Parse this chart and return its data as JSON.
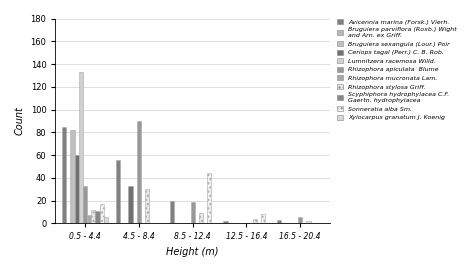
{
  "categories": [
    "0.5 - 4.4",
    "4.5 - 8.4",
    "8.5 - 12.4",
    "12.5 - 16.4",
    "16.5 - 20.4"
  ],
  "species": [
    "Avicennia marina (Forsk.) Vierh.",
    "Bruguiera parviflora (Roxb.) Wight\nand Arn. ex Griff.",
    "Bruguiera sexangula (Lour.) Poir",
    "Ceriops tagal (Perr.) C. B. Rob.",
    "Lumnitzera racemosa Willd.",
    "Rhizophora apiculata  Blume",
    "Rhizophora mucronata Lam.",
    "Rhizophora stylosa Griff.",
    "Scyphiphora hydrophylacea C.F.\nGaertn. hydrophylacea",
    "Sonneratia alba Sm.",
    "Xylocarpus granatum J. Koenig"
  ],
  "colors": [
    "#808080",
    "#b8b8b8",
    "#c0c0c0",
    "#707070",
    "#d0d0d0",
    "#989898",
    "#a8a8a8",
    "#e8e8e8",
    "#888888",
    "#f2f2f2",
    "#d8d8d8"
  ],
  "hatches": [
    "",
    "",
    "",
    "",
    "",
    "",
    "",
    "....",
    "",
    "....",
    ""
  ],
  "data": [
    [
      85,
      56,
      20,
      2,
      3
    ],
    [
      0,
      0,
      0,
      0,
      0
    ],
    [
      82,
      0,
      0,
      0,
      0
    ],
    [
      60,
      33,
      0,
      0,
      0
    ],
    [
      133,
      0,
      0,
      0,
      0
    ],
    [
      33,
      90,
      19,
      0,
      6
    ],
    [
      7,
      0,
      0,
      0,
      0
    ],
    [
      12,
      30,
      9,
      4,
      2
    ],
    [
      11,
      0,
      0,
      0,
      0
    ],
    [
      17,
      0,
      44,
      8,
      0
    ],
    [
      6,
      0,
      0,
      0,
      0
    ]
  ],
  "ylim": [
    0,
    180
  ],
  "yticks": [
    0,
    20,
    40,
    60,
    80,
    100,
    120,
    140,
    160,
    180
  ],
  "ylabel": "Count",
  "xlabel": "Height (m)",
  "bar_edge_color": "#aaaaaa",
  "bar_linewidth": 0.4
}
